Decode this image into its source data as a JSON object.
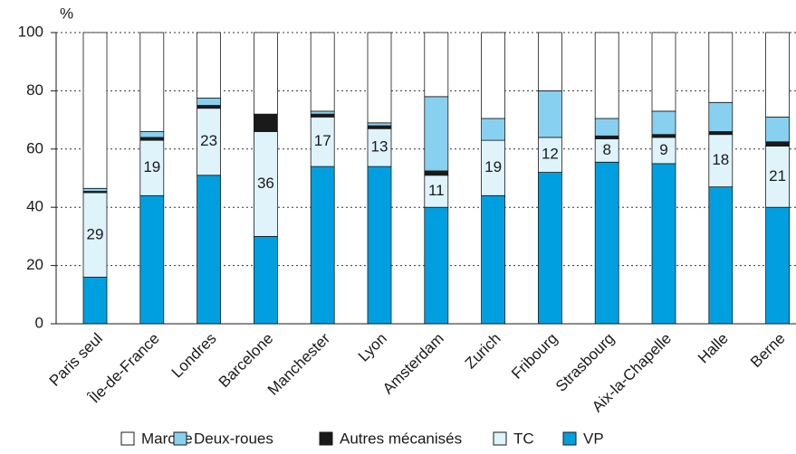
{
  "chart_data": {
    "type": "stacked_bar",
    "y_label": "%",
    "categories": [
      "Paris seul",
      "Île-de-France",
      "Londres",
      "Barcelone",
      "Manchester",
      "Lyon",
      "Amsterdam",
      "Zurich",
      "Fribourg",
      "Strasbourg",
      "Aix-la-Chapelle",
      "Halle",
      "Berne"
    ],
    "series": [
      {
        "name": "VP",
        "color": "#00a0e0",
        "values": [
          16,
          44,
          51,
          30,
          54,
          54,
          40,
          44,
          52,
          55.5,
          55,
          47,
          40
        ]
      },
      {
        "name": "TC",
        "color": "#dff3fb",
        "values": [
          29,
          19,
          23,
          36,
          17,
          13,
          11,
          19,
          12,
          8,
          9,
          18,
          21
        ],
        "labels": true
      },
      {
        "name": "Autres mécanisés",
        "color": "#1a1a1a",
        "values": [
          0.5,
          1,
          1,
          6,
          1,
          1,
          1.5,
          0,
          0,
          1,
          1,
          1,
          1.5
        ]
      },
      {
        "name": "Deux-roues",
        "color": "#88d0f0",
        "values": [
          1,
          2,
          2.5,
          0,
          1,
          1,
          25.5,
          7.5,
          16,
          6,
          8,
          10,
          8.5
        ]
      },
      {
        "name": "Marche",
        "color": "#ffffff",
        "values": [
          53.5,
          34,
          22.5,
          28,
          27,
          31,
          22,
          29.5,
          20,
          29.5,
          27,
          24,
          29
        ]
      }
    ],
    "legend_order": [
      4,
      3,
      2,
      1,
      0
    ],
    "ylim": [
      0,
      100
    ],
    "yticks": [
      0,
      20,
      40,
      60,
      80,
      100
    ],
    "grid": true
  }
}
